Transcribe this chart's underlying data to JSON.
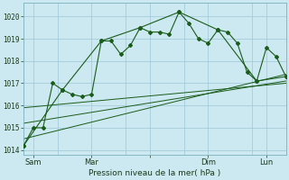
{
  "background_color": "#cce8f0",
  "grid_color": "#9ec8d8",
  "line_color": "#1a5c1a",
  "xlabel": "Pression niveau de la mer( hPa )",
  "ylim": [
    1013.8,
    1020.6
  ],
  "yticks": [
    1014,
    1015,
    1016,
    1017,
    1018,
    1019,
    1020
  ],
  "xlim": [
    0,
    27
  ],
  "series1_x": [
    0,
    1,
    2,
    3,
    4,
    5,
    6,
    7,
    8,
    9,
    10,
    11,
    12,
    13,
    14,
    15,
    16,
    17,
    18,
    19,
    20,
    21,
    22,
    23,
    24,
    25,
    26,
    27
  ],
  "series1_y": [
    1014.2,
    1015.0,
    1015.0,
    1017.0,
    1016.7,
    1016.5,
    1016.4,
    1016.5,
    1018.9,
    1018.9,
    1018.3,
    1018.7,
    1019.5,
    1019.3,
    1019.3,
    1019.2,
    1020.2,
    1019.7,
    1019.0,
    1018.8,
    1019.4,
    1019.3,
    1018.8,
    1017.5,
    1017.1,
    1018.6,
    1018.2,
    1017.3
  ],
  "series2_x": [
    0,
    4,
    8,
    12,
    16,
    20,
    24,
    27
  ],
  "series2_y": [
    1014.2,
    1016.7,
    1018.9,
    1019.5,
    1020.2,
    1019.4,
    1017.1,
    1017.3
  ],
  "trend1_x": [
    0,
    27
  ],
  "trend1_y": [
    1014.5,
    1017.4
  ],
  "trend2_x": [
    0,
    27
  ],
  "trend2_y": [
    1015.2,
    1017.1
  ],
  "trend3_x": [
    0,
    27
  ],
  "trend3_y": [
    1015.9,
    1017.0
  ],
  "xtick_positions": [
    1,
    7,
    13,
    19,
    25
  ],
  "xtick_labels": [
    "Sam",
    "Mar",
    "",
    "Dim",
    "Lun"
  ],
  "day_lines": [
    3.5,
    10.5,
    16.5,
    23.5
  ]
}
